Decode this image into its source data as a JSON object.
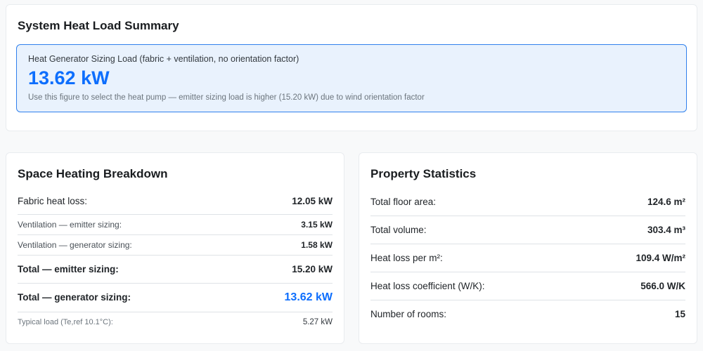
{
  "colors": {
    "accent": "#0d6efd",
    "alert_background": "#e9f2fd",
    "alert_border": "#2f80ed"
  },
  "summary": {
    "heading": "System Heat Load Summary",
    "alert": {
      "label": "Heat Generator Sizing Load (fabric + ventilation, no orientation factor)",
      "value": "13.62 kW",
      "note": "Use this figure to select the heat pump — emitter sizing load is higher (15.20 kW) due to wind orientation factor"
    }
  },
  "breakdown": {
    "heading": "Space Heating Breakdown",
    "rows": [
      {
        "label": "Fabric heat loss:",
        "value": "12.05 kW"
      },
      {
        "label": "Ventilation — emitter sizing:",
        "value": "3.15 kW"
      },
      {
        "label": "Ventilation — generator sizing:",
        "value": "1.58 kW"
      },
      {
        "label": "Total — emitter sizing:",
        "value": "15.20 kW"
      },
      {
        "label": "Total — generator sizing:",
        "value": "13.62 kW"
      },
      {
        "label": "Typical load (Te,ref 10.1°C):",
        "value": "5.27 kW"
      }
    ]
  },
  "stats": {
    "heading": "Property Statistics",
    "rows": [
      {
        "label": "Total floor area:",
        "value": "124.6 m²"
      },
      {
        "label": "Total volume:",
        "value": "303.4 m³"
      },
      {
        "label": "Heat loss per m²:",
        "value": "109.4 W/m²"
      },
      {
        "label": "Heat loss coefficient (W/K):",
        "value": "566.0 W/K"
      },
      {
        "label": "Number of rooms:",
        "value": "15"
      }
    ]
  }
}
